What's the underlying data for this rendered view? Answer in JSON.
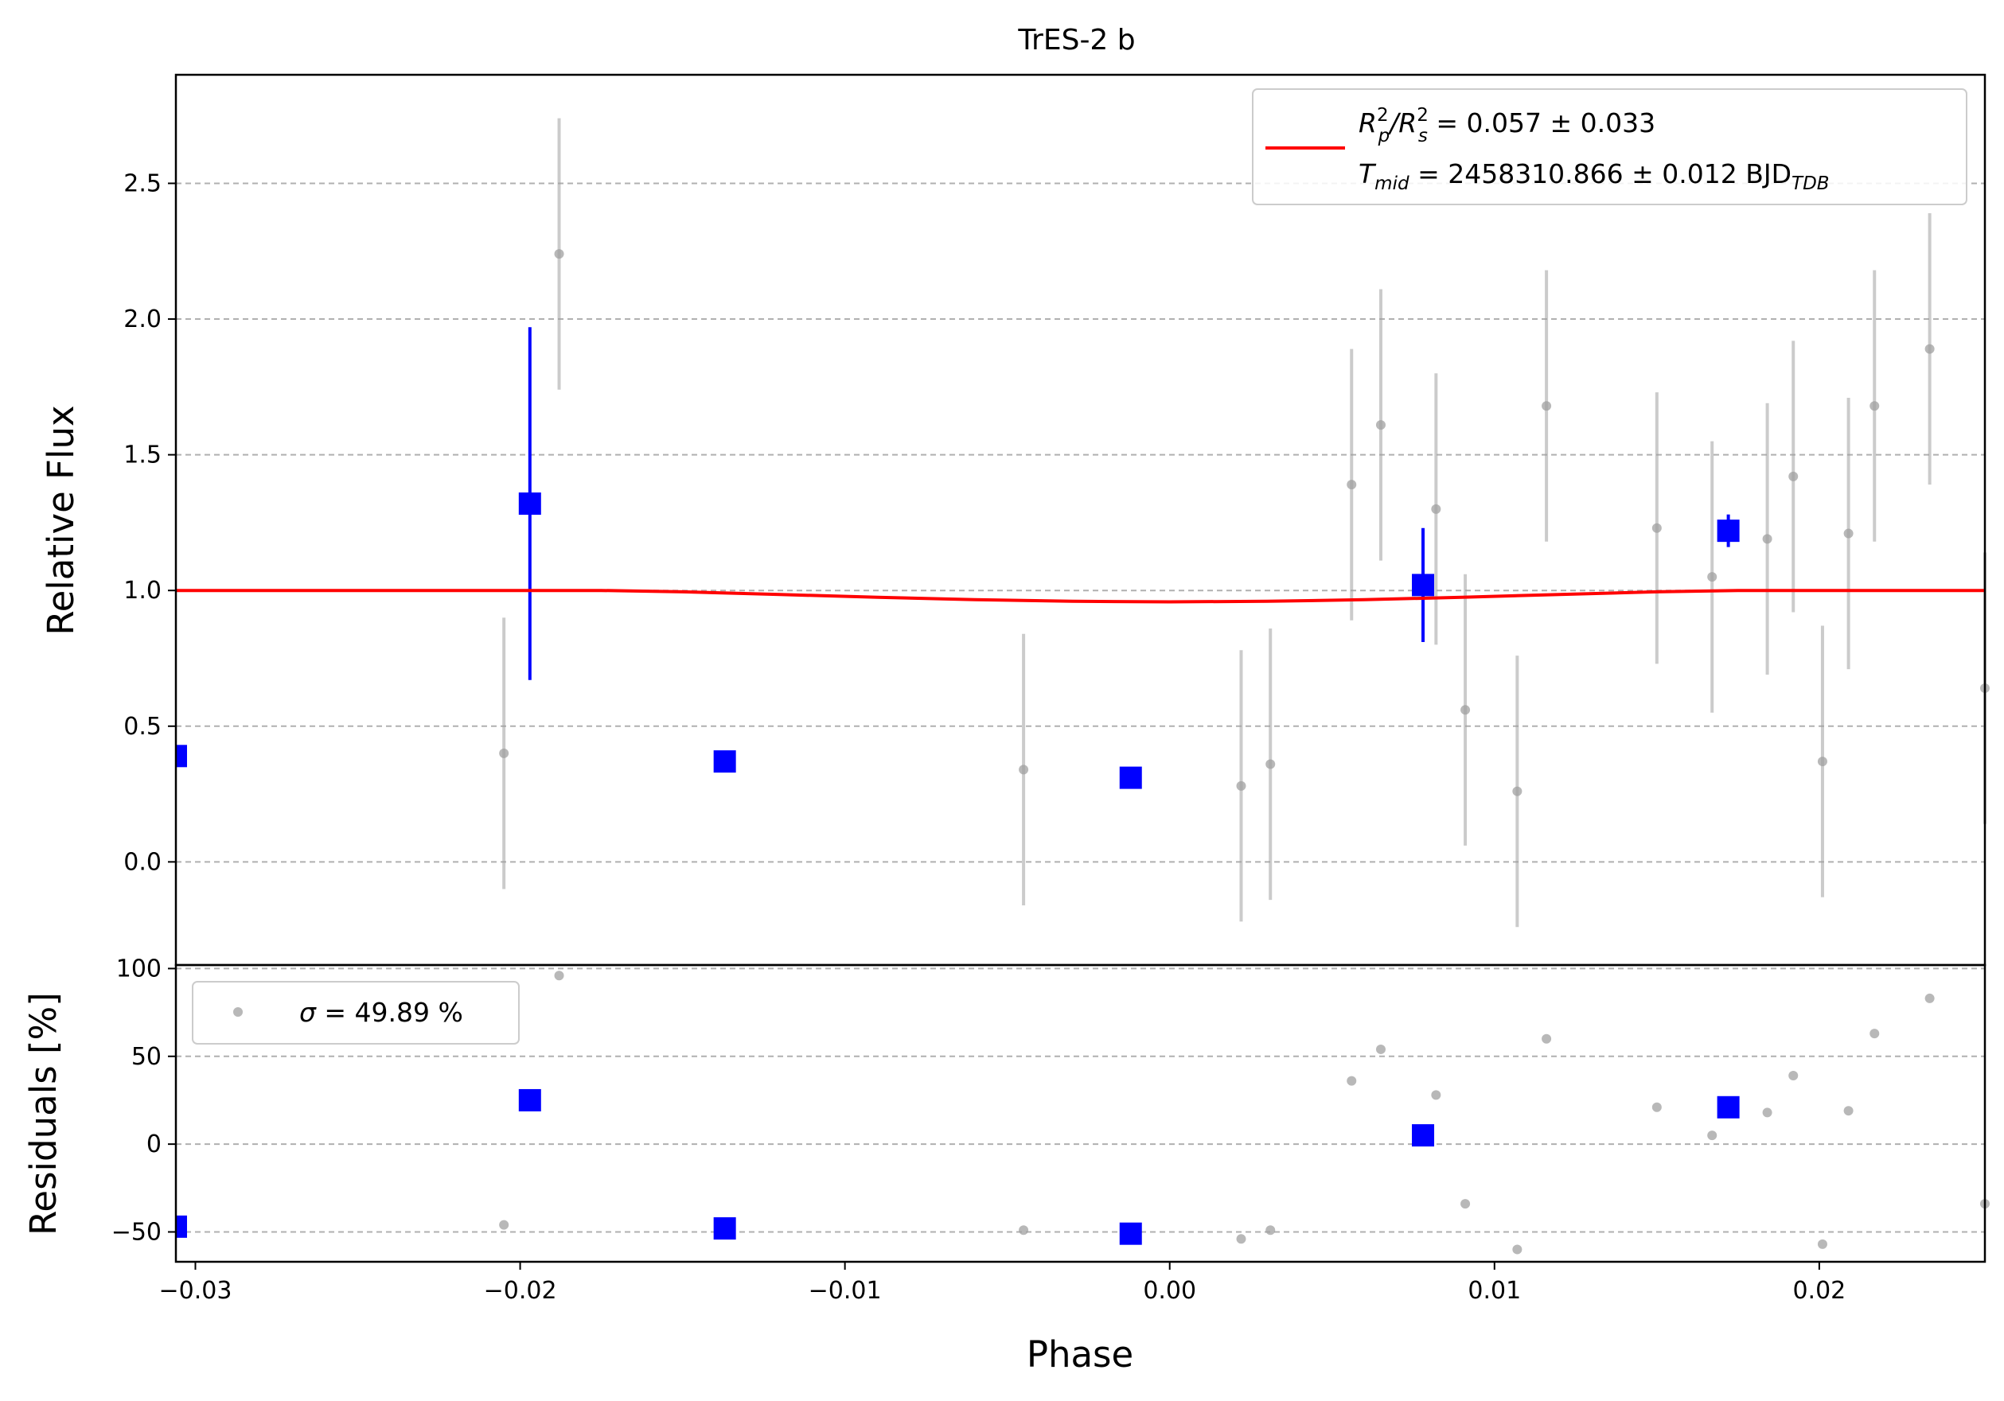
{
  "chart_data": [
    {
      "type": "scatter",
      "panel": "main",
      "title": "TrES-2 b",
      "xlabel": "",
      "ylabel": "Relative Flux",
      "xlim": [
        -0.0306,
        0.0251
      ],
      "ylim": [
        -0.38,
        2.9
      ],
      "yticks": [
        0.0,
        0.5,
        1.0,
        1.5,
        2.0,
        2.5
      ],
      "ytick_labels": [
        "0.0",
        "0.5",
        "1.0",
        "1.5",
        "2.0",
        "2.5"
      ],
      "grid": "horizontal dashed",
      "legend_position": "upper-right",
      "colors": {
        "raw": "#a0a0a0",
        "binned": "#0000ff",
        "model": "#ff0000"
      },
      "series": [
        {
          "kind": "raw",
          "x": [
            -0.0205,
            -0.0188,
            -0.0045,
            0.0022,
            0.0031,
            0.0056,
            0.0065,
            0.0082,
            0.0091,
            0.0107,
            0.0116,
            0.015,
            0.0167,
            0.0184,
            0.0192,
            0.0201,
            0.0209,
            0.0217,
            0.0234,
            0.0251
          ],
          "y": [
            0.4,
            2.24,
            0.34,
            0.28,
            0.36,
            1.39,
            1.61,
            1.3,
            0.56,
            0.26,
            1.68,
            1.23,
            1.05,
            1.19,
            1.42,
            0.37,
            1.21,
            1.68,
            1.89,
            0.64
          ],
          "err": [
            0.5,
            0.5,
            0.5,
            0.5,
            0.5,
            0.5,
            0.5,
            0.5,
            0.5,
            0.5,
            0.5,
            0.5,
            0.5,
            0.5,
            0.5,
            0.5,
            0.5,
            0.5,
            0.5,
            0.5
          ]
        },
        {
          "kind": "binned",
          "x": [
            -0.0306,
            -0.0197,
            -0.0137,
            -0.0012,
            0.0078,
            0.0172
          ],
          "y": [
            0.39,
            1.32,
            0.37,
            0.31,
            1.02,
            1.22
          ],
          "err": [
            0.0,
            0.65,
            0.0,
            0.0,
            0.21,
            0.06
          ]
        },
        {
          "kind": "model",
          "x": [
            -0.0306,
            -0.0175,
            -0.015,
            -0.012,
            -0.009,
            -0.006,
            -0.003,
            0.0,
            0.003,
            0.006,
            0.009,
            0.012,
            0.015,
            0.0175,
            0.0251
          ],
          "y": [
            1.0,
            1.0,
            0.995,
            0.985,
            0.975,
            0.966,
            0.96,
            0.958,
            0.96,
            0.966,
            0.975,
            0.985,
            0.995,
            1.0,
            1.0
          ]
        }
      ],
      "legend": {
        "line1_main": "R",
        "line1_sup1": "2",
        "line1_sub1": "p",
        "line1_slash": "/R",
        "line1_sup2": "2",
        "line1_sub2": "s",
        "line1_value": " = 0.057 ± 0.033",
        "line2_main": "T",
        "line2_sub": "mid",
        "line2_value": " = 2458310.866 ± 0.012 BJD",
        "line2_unit_sub": "TDB"
      }
    },
    {
      "type": "scatter",
      "panel": "residuals",
      "xlabel": "Phase",
      "ylabel": "Residuals [%]",
      "xlim": [
        -0.0306,
        0.0251
      ],
      "ylim": [
        -67,
        102
      ],
      "yticks": [
        -50,
        0,
        50,
        100
      ],
      "ytick_labels": [
        "−50",
        "0",
        "50",
        "100"
      ],
      "xticks": [
        -0.03,
        -0.02,
        -0.01,
        0.0,
        0.01,
        0.02
      ],
      "xtick_labels": [
        "−0.03",
        "−0.02",
        "−0.01",
        "0.00",
        "0.01",
        "0.02"
      ],
      "grid": "horizontal dashed",
      "legend_position": "upper-left",
      "series": [
        {
          "kind": "raw",
          "x": [
            -0.0205,
            -0.0188,
            -0.0045,
            0.0022,
            0.0031,
            0.0056,
            0.0065,
            0.0082,
            0.0091,
            0.0107,
            0.0116,
            0.015,
            0.0167,
            0.0184,
            0.0192,
            0.0201,
            0.0209,
            0.0217,
            0.0234,
            0.0251
          ],
          "y": [
            -46,
            96,
            -49,
            -54,
            -49,
            36,
            54,
            28,
            -34,
            -60,
            60,
            21,
            5,
            18,
            39,
            -57,
            19,
            63,
            83,
            -34
          ]
        },
        {
          "kind": "binned",
          "x": [
            -0.0306,
            -0.0197,
            -0.0137,
            -0.0012,
            0.0078,
            0.0172
          ],
          "y": [
            -47,
            25,
            -48,
            -51,
            5,
            21
          ]
        }
      ],
      "legend": {
        "sigma_symbol": "σ",
        "sigma_value": " = 49.89 %"
      }
    }
  ]
}
